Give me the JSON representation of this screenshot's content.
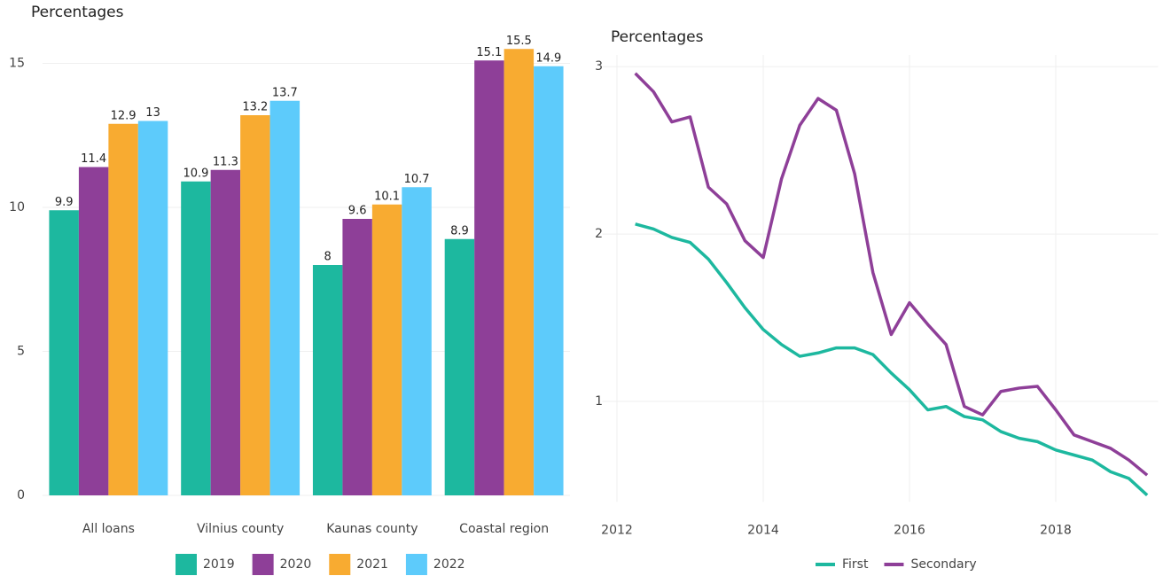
{
  "chart_data": [
    {
      "type": "bar",
      "title": "Percentages",
      "categories": [
        "All loans",
        "Vilnius county",
        "Kaunas county",
        "Coastal region"
      ],
      "series": [
        {
          "name": "2019",
          "color": "#1db89f",
          "values": [
            9.9,
            10.9,
            8,
            8.9
          ]
        },
        {
          "name": "2020",
          "color": "#8e3f98",
          "values": [
            11.4,
            11.3,
            9.6,
            15.1
          ]
        },
        {
          "name": "2021",
          "color": "#f8ab31",
          "values": [
            12.9,
            13.2,
            10.1,
            15.5
          ]
        },
        {
          "name": "2022",
          "color": "#5dcbfb",
          "values": [
            13,
            13.7,
            10.7,
            14.9
          ]
        }
      ],
      "ylim": [
        0,
        16
      ],
      "yticks": [
        0,
        5,
        10,
        15
      ],
      "grid": true,
      "legend": "bottom"
    },
    {
      "type": "line",
      "title": "Percentages",
      "x": [
        2012.25,
        2012.5,
        2012.75,
        2013,
        2013.25,
        2013.5,
        2013.75,
        2014,
        2014.25,
        2014.5,
        2014.75,
        2015,
        2015.25,
        2015.5,
        2015.75,
        2016,
        2016.25,
        2016.5,
        2016.75,
        2017,
        2017.25,
        2017.5,
        2017.75,
        2018,
        2018.25,
        2018.5,
        2018.75,
        2019,
        2019.25
      ],
      "series": [
        {
          "name": "First",
          "color": "#1db89f",
          "values": [
            2.06,
            2.03,
            1.98,
            1.95,
            1.85,
            1.71,
            1.56,
            1.43,
            1.34,
            1.27,
            1.29,
            1.32,
            1.32,
            1.28,
            1.17,
            1.07,
            0.95,
            0.97,
            0.91,
            0.89,
            0.82,
            0.78,
            0.76,
            0.71,
            0.68,
            0.65,
            0.58,
            0.54,
            0.44
          ]
        },
        {
          "name": "Secondary",
          "color": "#8e3f98",
          "values": [
            2.96,
            2.85,
            2.67,
            2.7,
            2.28,
            2.18,
            1.96,
            1.86,
            2.33,
            2.65,
            2.81,
            2.74,
            2.36,
            1.77,
            1.4,
            1.59,
            1.46,
            1.34,
            0.97,
            0.92,
            1.06,
            1.08,
            1.09,
            0.95,
            0.8,
            0.76,
            0.72,
            0.65,
            0.56
          ]
        }
      ],
      "xlim": [
        2011.8,
        2019.4
      ],
      "xticks": [
        2012,
        2014,
        2016,
        2018
      ],
      "ylim": [
        0.4,
        3.07
      ],
      "yticks": [
        1,
        2,
        3
      ],
      "grid": true,
      "legend": "bottom"
    }
  ]
}
